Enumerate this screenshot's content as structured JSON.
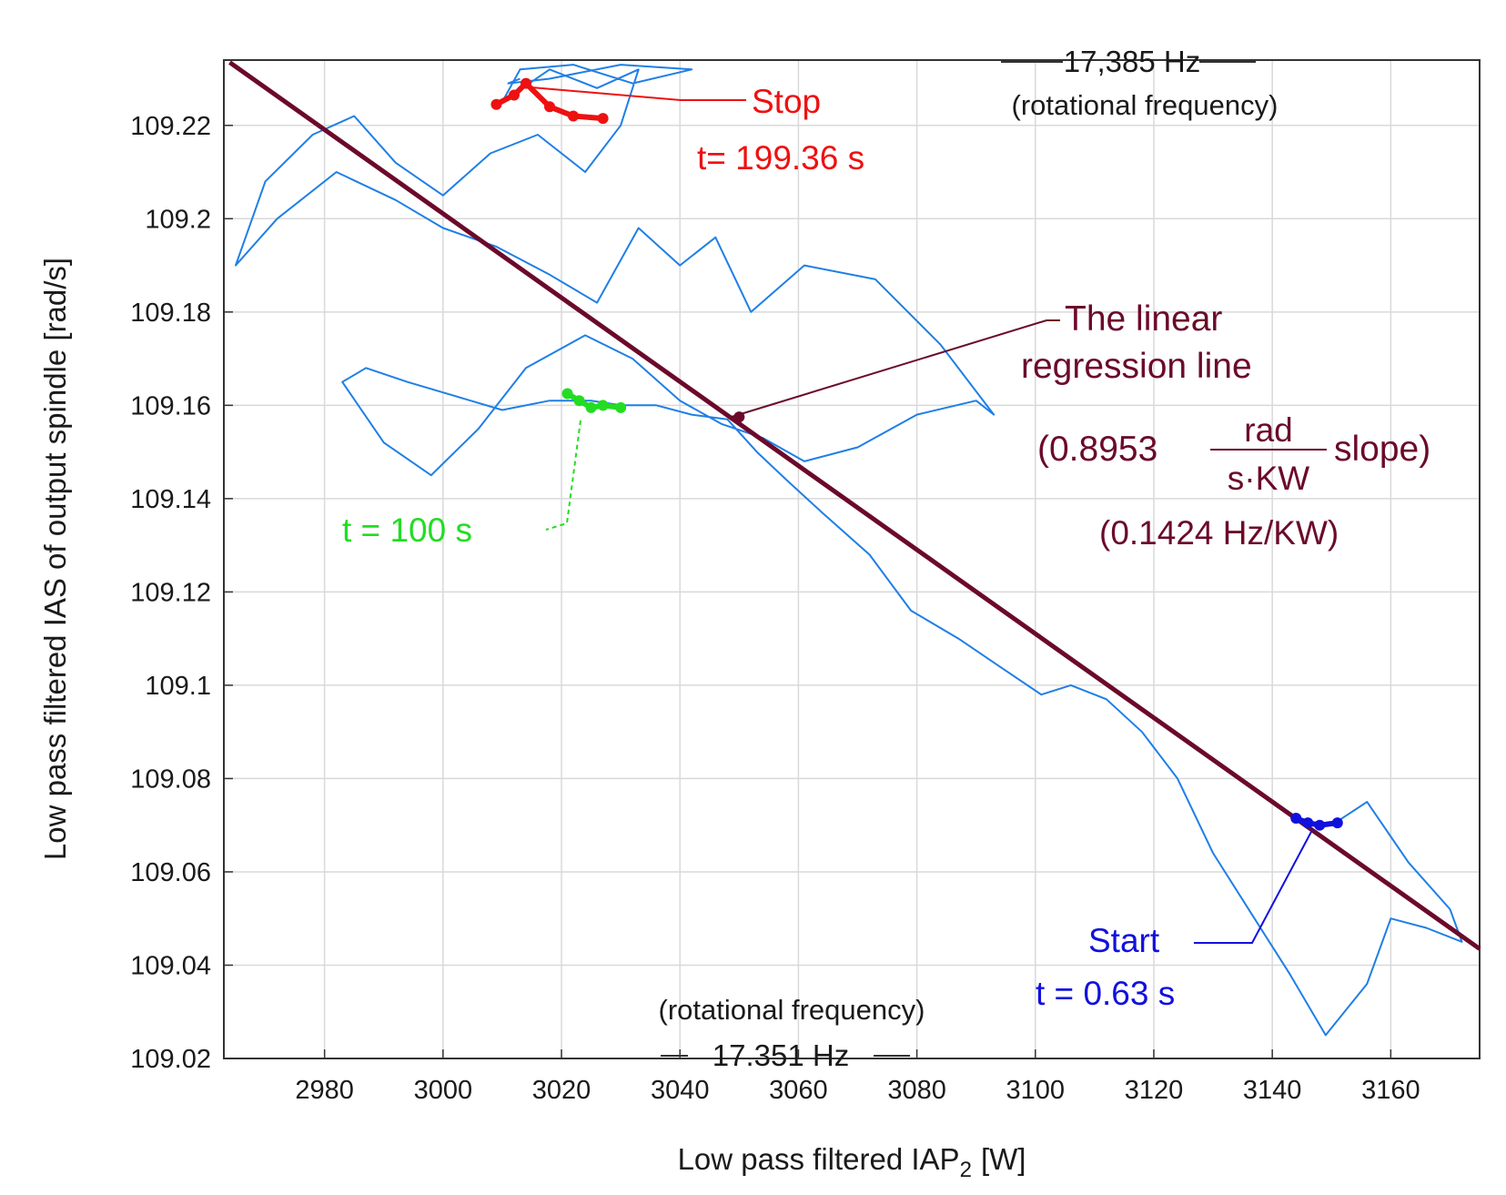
{
  "chart_data": {
    "type": "scatter",
    "title": "",
    "xlabel": "Low pass filtered IAP",
    "xlabel_subscript": "2",
    "xlabel_unit": "[W]",
    "ylabel": "Low pass filtered IAS of output spindle [rad/s]",
    "xlim": [
      2963,
      3175
    ],
    "ylim": [
      109.02,
      109.234
    ],
    "x_ticks": [
      2980,
      3000,
      3020,
      3040,
      3060,
      3080,
      3100,
      3120,
      3140,
      3160
    ],
    "y_ticks": [
      109.02,
      109.04,
      109.06,
      109.08,
      109.1,
      109.12,
      109.14,
      109.16,
      109.18,
      109.2,
      109.22
    ],
    "x_tick_labels": [
      "2980",
      "3000",
      "3020",
      "3040",
      "3060",
      "3080",
      "3100",
      "3120",
      "3140",
      "3160"
    ],
    "y_tick_labels": [
      "109.02",
      "109.04",
      "109.06",
      "109.08",
      "109.1",
      "109.12",
      "109.14",
      "109.16",
      "109.18",
      "109.2",
      "109.22"
    ],
    "grid": true,
    "series": [
      {
        "name": "trajectory",
        "color": "#1f7fe6",
        "x": [
          3150,
          3156,
          3163,
          3170,
          3172,
          3166,
          3160,
          3156,
          3149,
          3143,
          3137,
          3130,
          3124,
          3118,
          3112,
          3106,
          3101,
          3094,
          3087,
          3079,
          3072,
          3064,
          3058,
          3053,
          3048,
          3042,
          3036,
          3030,
          3025,
          3018,
          3010,
          3002,
          2994,
          2987,
          2983,
          2990,
          2998,
          3006,
          3014,
          3024,
          3032,
          3040,
          3047,
          3054,
          3061,
          3070,
          3080,
          3090,
          3093,
          3084,
          3073,
          3061,
          3052,
          3046,
          3040,
          3033,
          3026,
          3018,
          3009,
          3000,
          2992,
          2982,
          2972,
          2965,
          2970,
          2978,
          2985,
          2992,
          3000,
          3008,
          3016,
          3024,
          3030,
          3033,
          3026,
          3018,
          3010,
          3013,
          3022,
          3032,
          3042,
          3030,
          3018,
          3011,
          3013
        ],
        "y": [
          109.07,
          109.075,
          109.062,
          109.052,
          109.045,
          109.048,
          109.05,
          109.036,
          109.025,
          109.038,
          109.05,
          109.064,
          109.08,
          109.09,
          109.097,
          109.1,
          109.098,
          109.104,
          109.11,
          109.116,
          109.128,
          109.137,
          109.144,
          109.15,
          109.157,
          109.158,
          109.16,
          109.16,
          109.161,
          109.161,
          109.159,
          109.162,
          109.165,
          109.168,
          109.165,
          109.152,
          109.145,
          109.155,
          109.168,
          109.175,
          109.17,
          109.161,
          109.156,
          109.153,
          109.148,
          109.151,
          109.158,
          109.161,
          109.158,
          109.173,
          109.187,
          109.19,
          109.18,
          109.196,
          109.19,
          109.198,
          109.182,
          109.188,
          109.194,
          109.198,
          109.204,
          109.21,
          109.2,
          109.19,
          109.208,
          109.218,
          109.222,
          109.212,
          109.205,
          109.214,
          109.218,
          109.21,
          109.22,
          109.232,
          109.228,
          109.232,
          109.225,
          109.232,
          109.233,
          109.229,
          109.232,
          109.233,
          109.23,
          109.229,
          109.23
        ]
      },
      {
        "name": "regression",
        "color": "#6b0a2a",
        "x": [
          2964,
          3175
        ],
        "y": [
          109.2335,
          109.0435
        ]
      }
    ],
    "markers": [
      {
        "name": "start",
        "color": "#1111dd",
        "x": [
          3144,
          3146,
          3148,
          3151
        ],
        "y": [
          109.0715,
          109.0705,
          109.07,
          109.0705
        ]
      },
      {
        "name": "t100",
        "color": "#22dd22",
        "x": [
          3021,
          3023,
          3025,
          3027,
          3030
        ],
        "y": [
          109.1625,
          109.161,
          109.1595,
          109.16,
          109.1595
        ]
      },
      {
        "name": "stop",
        "color": "#ee1111",
        "x": [
          3009,
          3012,
          3014,
          3018,
          3022,
          3027
        ],
        "y": [
          109.2245,
          109.2265,
          109.229,
          109.224,
          109.222,
          109.2215
        ]
      },
      {
        "name": "regression-point",
        "color": "#6b0a2a",
        "x": [
          3050
        ],
        "y": [
          109.1575
        ]
      }
    ]
  },
  "annotations": {
    "top_freq": "17,385 Hz",
    "top_freq_note": "(rotational frequency)",
    "stop_label": "Stop",
    "stop_time": "t= 199.36 s",
    "t100_label": "t = 100 s",
    "regression_line1": "The linear",
    "regression_line2": "regression line",
    "slope_prefix": "(0.8953",
    "slope_num": "rad",
    "slope_den": "s·KW",
    "slope_suffix": "slope)",
    "slope_hz": "(0.1424 Hz/KW)",
    "start_label": "Start",
    "start_time": "t = 0.63 s",
    "bottom_freq_note": "(rotational frequency)",
    "bottom_freq": "17.351 Hz"
  },
  "colors": {
    "trajectory": "#1f7fe6",
    "regression": "#6b0a2a",
    "stop": "#ee1111",
    "start": "#1111dd",
    "t100": "#22dd22",
    "grid": "#d9d9d9",
    "axis": "#333333"
  }
}
